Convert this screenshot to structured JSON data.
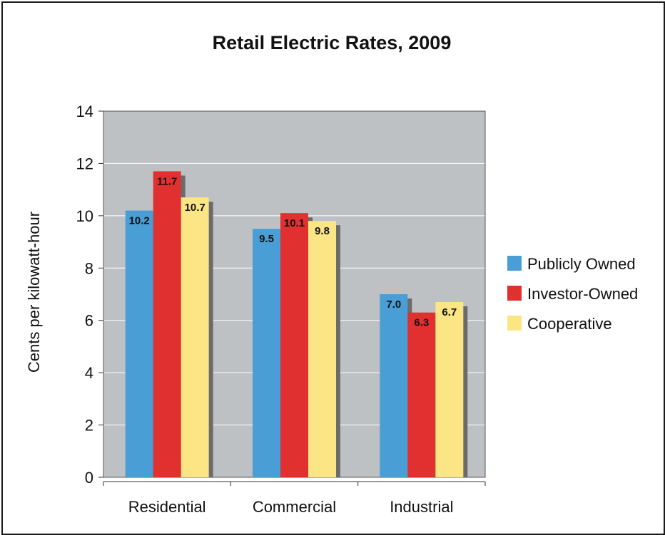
{
  "chart_data": {
    "type": "bar",
    "title": "Retail Electric Rates, 2009",
    "xlabel": "",
    "ylabel": "Cents per kilowatt-hour",
    "categories": [
      "Residential",
      "Commercial",
      "Industrial"
    ],
    "series": [
      {
        "name": "Publicly Owned",
        "color": "#4a9ed6",
        "values": [
          10.2,
          9.5,
          7.0
        ],
        "labels": [
          "10.2",
          "9.5",
          "7.0"
        ]
      },
      {
        "name": "Investor-Owned",
        "color": "#e03030",
        "values": [
          11.7,
          10.1,
          6.3
        ],
        "labels": [
          "11.7",
          "10.1",
          "6.3"
        ]
      },
      {
        "name": "Cooperative",
        "color": "#fbe585",
        "values": [
          10.7,
          9.8,
          6.7
        ],
        "labels": [
          "10.7",
          "9.8",
          "6.7"
        ]
      }
    ],
    "ylim": [
      0,
      14
    ],
    "yticks": [
      0,
      2,
      4,
      6,
      8,
      10,
      12,
      14
    ],
    "grid": true,
    "legend_position": "right",
    "plot_background": "#bec1c3",
    "shadow_color": "#6b6b6b"
  }
}
